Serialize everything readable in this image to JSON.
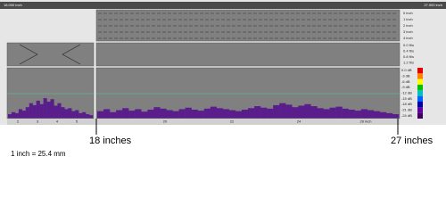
{
  "header": {
    "start": "18.000 inch",
    "end": "27.000 inch"
  },
  "top_panel": {
    "labels": [
      "0 inch",
      "1 inch",
      "2 inch",
      "3 inch",
      "4 inch"
    ]
  },
  "middle_panel": {
    "labels": [
      "0.0 ft/s",
      "0.4 ft/s",
      "0.8 ft/s",
      "1.2 ft/s"
    ]
  },
  "color_scale": {
    "labels": [
      "0.0 dB",
      "-3 dB",
      "-6 dB",
      "-9 dB",
      "-12 dB",
      "-15 dB",
      "-18 dB",
      "-21 dB",
      "-24 dB"
    ],
    "colors": [
      "#e00000",
      "#ff8000",
      "#ffff00",
      "#00c000",
      "#00c0c0",
      "#0060ff",
      "#0000a0",
      "#6000a0",
      "#400060"
    ]
  },
  "axis": {
    "left_ticks": [
      "2",
      "3",
      "4",
      "5"
    ],
    "right_ticks": [
      "20",
      "22",
      "24",
      "26 inch"
    ]
  },
  "signal": {
    "left": [
      8,
      12,
      10,
      18,
      15,
      22,
      30,
      26,
      35,
      28,
      40,
      33,
      38,
      25,
      30,
      22,
      18,
      20,
      14,
      16,
      10,
      12,
      8,
      6
    ],
    "right": [
      14,
      18,
      12,
      16,
      20,
      15,
      18,
      13,
      17,
      22,
      19,
      16,
      14,
      18,
      21,
      17,
      15,
      19,
      23,
      20,
      18,
      16,
      14,
      17,
      20,
      24,
      21,
      19,
      26,
      30,
      27,
      22,
      25,
      28,
      24,
      20,
      18,
      21,
      23,
      19,
      17,
      15,
      18,
      16,
      14,
      12,
      10,
      8
    ]
  },
  "markers": {
    "start": "18 inches",
    "end": "27 inches"
  },
  "footnote": "1 inch = 25.4 mm"
}
